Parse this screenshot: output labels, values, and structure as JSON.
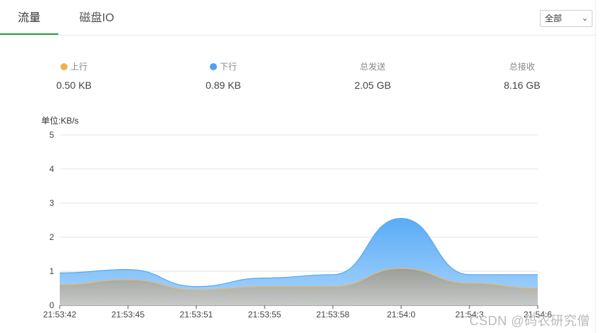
{
  "tabs": [
    {
      "label": "流量",
      "active": true
    },
    {
      "label": "磁盘IO",
      "active": false
    }
  ],
  "select": {
    "value": "全部"
  },
  "stats": {
    "upload": {
      "label": "上行",
      "value": "0.50 KB",
      "color": "#f0b24a"
    },
    "download": {
      "label": "下行",
      "value": "0.89 KB",
      "color": "#4aa3f5"
    },
    "total_sent": {
      "label": "总发送",
      "value": "2.05 GB"
    },
    "total_received": {
      "label": "总接收",
      "value": "8.16 GB"
    }
  },
  "chart_data": {
    "type": "area",
    "ylabel": "单位:KB/s",
    "ylim": [
      0,
      5
    ],
    "yticks": [
      0,
      1,
      2,
      3,
      4,
      5
    ],
    "categories": [
      "21:53:42",
      "21:53:45",
      "21:53:51",
      "21:53:55",
      "21:53:58",
      "21:54:0",
      "21:54:3",
      "21:54:6"
    ],
    "series": [
      {
        "name": "下行",
        "color": "#4aa3f5",
        "values": [
          0.95,
          1.05,
          0.55,
          0.8,
          0.9,
          2.55,
          0.9,
          0.9
        ]
      },
      {
        "name": "上行",
        "color": "#f0b24a",
        "values": [
          0.6,
          0.75,
          0.45,
          0.55,
          0.55,
          1.08,
          0.65,
          0.5
        ]
      }
    ],
    "grid": true
  },
  "watermark": "CSDN @码农研究僧"
}
